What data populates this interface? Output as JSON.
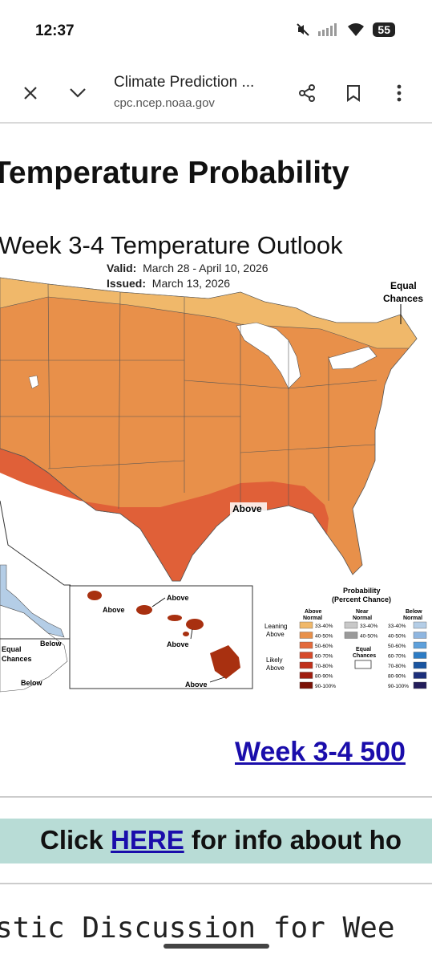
{
  "status": {
    "time": "12:37",
    "battery": "55"
  },
  "browser": {
    "page_title": "Climate Prediction ...",
    "host": "cpc.ncep.noaa.gov"
  },
  "heading": "Temperature Probability",
  "map": {
    "title": "Week 3-4 Temperature Outlook",
    "valid_label": "Valid:",
    "valid_value": "March 28 - April 10, 2026",
    "issued_label": "Issued:",
    "issued_value": "March 13, 2026",
    "equal_chances": [
      "Equal",
      "Chances"
    ],
    "above_label": "Above",
    "hawaii_labels": [
      "Above",
      "Above",
      "Above",
      "Above"
    ],
    "alaska_labels": {
      "below1": "Below",
      "below2": "Below",
      "equal": [
        "Equal",
        "Chances"
      ]
    },
    "legend": {
      "title": [
        "Probability",
        "(Percent Chance)"
      ],
      "above_header": [
        "Above",
        "Normal"
      ],
      "near_header": [
        "Near",
        "Normal"
      ],
      "below_header": [
        "Below",
        "Normal"
      ],
      "leaning_above": [
        "Leaning",
        "Above"
      ],
      "likely_above": [
        "Likely",
        "Above"
      ],
      "equal": [
        "Equal",
        "Chances"
      ],
      "above_ranges": [
        "33-40%",
        "40-50%",
        "50-60%",
        "60-70%",
        "70-80%",
        "80-90%",
        "90-100%"
      ],
      "near_ranges": [
        "33-40%",
        "40-50%"
      ],
      "below_ranges": [
        "33-40%",
        "40-50%",
        "50-60%",
        "60-70%",
        "70-80%",
        "80-90%",
        "90-100%"
      ],
      "above_colors": [
        "#f0b86a",
        "#e8904a",
        "#e36a3c",
        "#d64a2a",
        "#c0301a",
        "#a01e10",
        "#7a1206"
      ],
      "near_colors": [
        "#c8c8c8",
        "#9a9a9a"
      ],
      "below_colors": [
        "#b4cde6",
        "#8fb6e0",
        "#5ea0db",
        "#2d7cc4",
        "#1a55a0",
        "#1c2f7a",
        "#231d5a"
      ]
    }
  },
  "link_500": "Week 3-4 500",
  "banner": {
    "prefix": "Click ",
    "link": "HERE",
    "suffix": " for info about ho"
  },
  "mono_text": "stic Discussion for Wee"
}
